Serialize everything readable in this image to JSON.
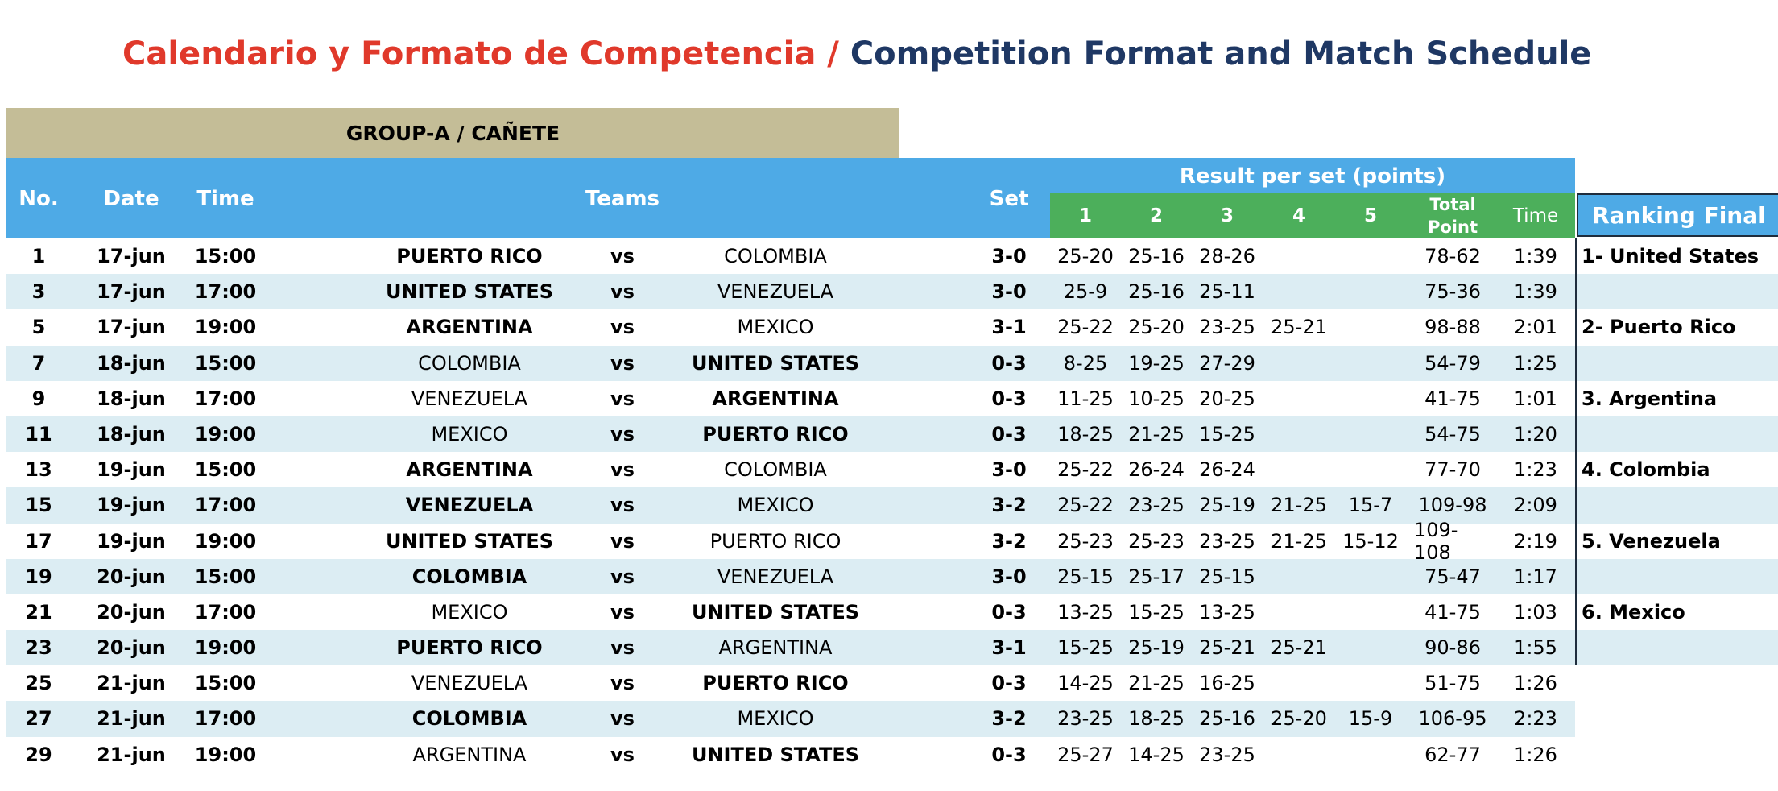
{
  "title": {
    "es": "Calendario y Formato de Competencia",
    "sep": " / ",
    "en": "Competition Format and  Match Schedule"
  },
  "group": "GROUP-A  / CAÑETE",
  "header": {
    "no": "No.",
    "date": "Date",
    "time": "Time",
    "teams": "Teams",
    "set": "Set",
    "result_per_set": "Result per set (points)",
    "sets": [
      "1",
      "2",
      "3",
      "4",
      "5"
    ],
    "total_point": "Total Point",
    "match_time": "Time"
  },
  "ranking": {
    "title": "Ranking Final",
    "items": [
      "1- United States",
      "",
      "2- Puerto Rico",
      "",
      "3. Argentina",
      "",
      "4. Colombia",
      "",
      "5. Venezuela",
      "",
      "6. Mexico",
      ""
    ]
  },
  "matches": [
    {
      "no": "1",
      "date": "17-jun",
      "time": "15:00",
      "home": "PUERTO RICO",
      "home_win": true,
      "vs": "vs",
      "away": "COLOMBIA",
      "away_win": false,
      "set": "3-0",
      "s1": "25-20",
      "s2": "25-16",
      "s3": "28-26",
      "s4": "",
      "s5": "",
      "total": "78-62",
      "duration": "1:39"
    },
    {
      "no": "3",
      "date": "17-jun",
      "time": "17:00",
      "home": "UNITED STATES",
      "home_win": true,
      "vs": "vs",
      "away": "VENEZUELA",
      "away_win": false,
      "set": "3-0",
      "s1": "25-9",
      "s2": "25-16",
      "s3": "25-11",
      "s4": "",
      "s5": "",
      "total": "75-36",
      "duration": "1:39"
    },
    {
      "no": "5",
      "date": "17-jun",
      "time": "19:00",
      "home": "ARGENTINA",
      "home_win": true,
      "vs": "vs",
      "away": "MEXICO",
      "away_win": false,
      "set": "3-1",
      "s1": "25-22",
      "s2": "25-20",
      "s3": "23-25",
      "s4": "25-21",
      "s5": "",
      "total": "98-88",
      "duration": "2:01"
    },
    {
      "no": "7",
      "date": "18-jun",
      "time": "15:00",
      "home": "COLOMBIA",
      "home_win": false,
      "vs": "vs",
      "away": "UNITED STATES",
      "away_win": true,
      "set": "0-3",
      "s1": "8-25",
      "s2": "19-25",
      "s3": "27-29",
      "s4": "",
      "s5": "",
      "total": "54-79",
      "duration": "1:25"
    },
    {
      "no": "9",
      "date": "18-jun",
      "time": "17:00",
      "home": "VENEZUELA",
      "home_win": false,
      "vs": "vs",
      "away": "ARGENTINA",
      "away_win": true,
      "set": "0-3",
      "s1": "11-25",
      "s2": "10-25",
      "s3": "20-25",
      "s4": "",
      "s5": "",
      "total": "41-75",
      "duration": "1:01"
    },
    {
      "no": "11",
      "date": "18-jun",
      "time": "19:00",
      "home": "MEXICO",
      "home_win": false,
      "vs": "vs",
      "away": "PUERTO RICO",
      "away_win": true,
      "set": "0-3",
      "s1": "18-25",
      "s2": "21-25",
      "s3": "15-25",
      "s4": "",
      "s5": "",
      "total": "54-75",
      "duration": "1:20"
    },
    {
      "no": "13",
      "date": "19-jun",
      "time": "15:00",
      "home": "ARGENTINA",
      "home_win": true,
      "vs": "vs",
      "away": "COLOMBIA",
      "away_win": false,
      "set": "3-0",
      "s1": "25-22",
      "s2": "26-24",
      "s3": "26-24",
      "s4": "",
      "s5": "",
      "total": "77-70",
      "duration": "1:23"
    },
    {
      "no": "15",
      "date": "19-jun",
      "time": "17:00",
      "home": "VENEZUELA",
      "home_win": true,
      "vs": "vs",
      "away": "MEXICO",
      "away_win": false,
      "set": "3-2",
      "s1": "25-22",
      "s2": "23-25",
      "s3": "25-19",
      "s4": "21-25",
      "s5": "15-7",
      "total": "109-98",
      "duration": "2:09"
    },
    {
      "no": "17",
      "date": "19-jun",
      "time": "19:00",
      "home": "UNITED STATES",
      "home_win": true,
      "vs": "vs",
      "away": "PUERTO RICO",
      "away_win": false,
      "set": "3-2",
      "s1": "25-23",
      "s2": "25-23",
      "s3": "23-25",
      "s4": "21-25",
      "s5": "15-12",
      "total": "109-108",
      "duration": "2:19"
    },
    {
      "no": "19",
      "date": "20-jun",
      "time": "15:00",
      "home": "COLOMBIA",
      "home_win": true,
      "vs": "vs",
      "away": "VENEZUELA",
      "away_win": false,
      "set": "3-0",
      "s1": "25-15",
      "s2": "25-17",
      "s3": "25-15",
      "s4": "",
      "s5": "",
      "total": "75-47",
      "duration": "1:17"
    },
    {
      "no": "21",
      "date": "20-jun",
      "time": "17:00",
      "home": "MEXICO",
      "home_win": false,
      "vs": "vs",
      "away": "UNITED STATES",
      "away_win": true,
      "set": "0-3",
      "s1": "13-25",
      "s2": "15-25",
      "s3": "13-25",
      "s4": "",
      "s5": "",
      "total": "41-75",
      "duration": "1:03"
    },
    {
      "no": "23",
      "date": "20-jun",
      "time": "19:00",
      "home": "PUERTO RICO",
      "home_win": true,
      "vs": "vs",
      "away": "ARGENTINA",
      "away_win": false,
      "set": "3-1",
      "s1": "15-25",
      "s2": "25-19",
      "s3": "25-21",
      "s4": "25-21",
      "s5": "",
      "total": "90-86",
      "duration": "1:55"
    },
    {
      "no": "25",
      "date": "21-jun",
      "time": "15:00",
      "home": "VENEZUELA",
      "home_win": false,
      "vs": "vs",
      "away": "PUERTO RICO",
      "away_win": true,
      "set": "0-3",
      "s1": "14-25",
      "s2": "21-25",
      "s3": "16-25",
      "s4": "",
      "s5": "",
      "total": "51-75",
      "duration": "1:26"
    },
    {
      "no": "27",
      "date": "21-jun",
      "time": "17:00",
      "home": "COLOMBIA",
      "home_win": true,
      "vs": "vs",
      "away": "MEXICO",
      "away_win": false,
      "set": "3-2",
      "s1": "23-25",
      "s2": "18-25",
      "s3": "25-16",
      "s4": "25-20",
      "s5": "15-9",
      "total": "106-95",
      "duration": "2:23"
    },
    {
      "no": "29",
      "date": "21-jun",
      "time": "19:00",
      "home": "ARGENTINA",
      "home_win": false,
      "vs": "vs",
      "away": "UNITED STATES",
      "away_win": true,
      "set": "0-3",
      "s1": "25-27",
      "s2": "14-25",
      "s3": "23-25",
      "s4": "",
      "s5": "",
      "total": "62-77",
      "duration": "1:26"
    }
  ]
}
